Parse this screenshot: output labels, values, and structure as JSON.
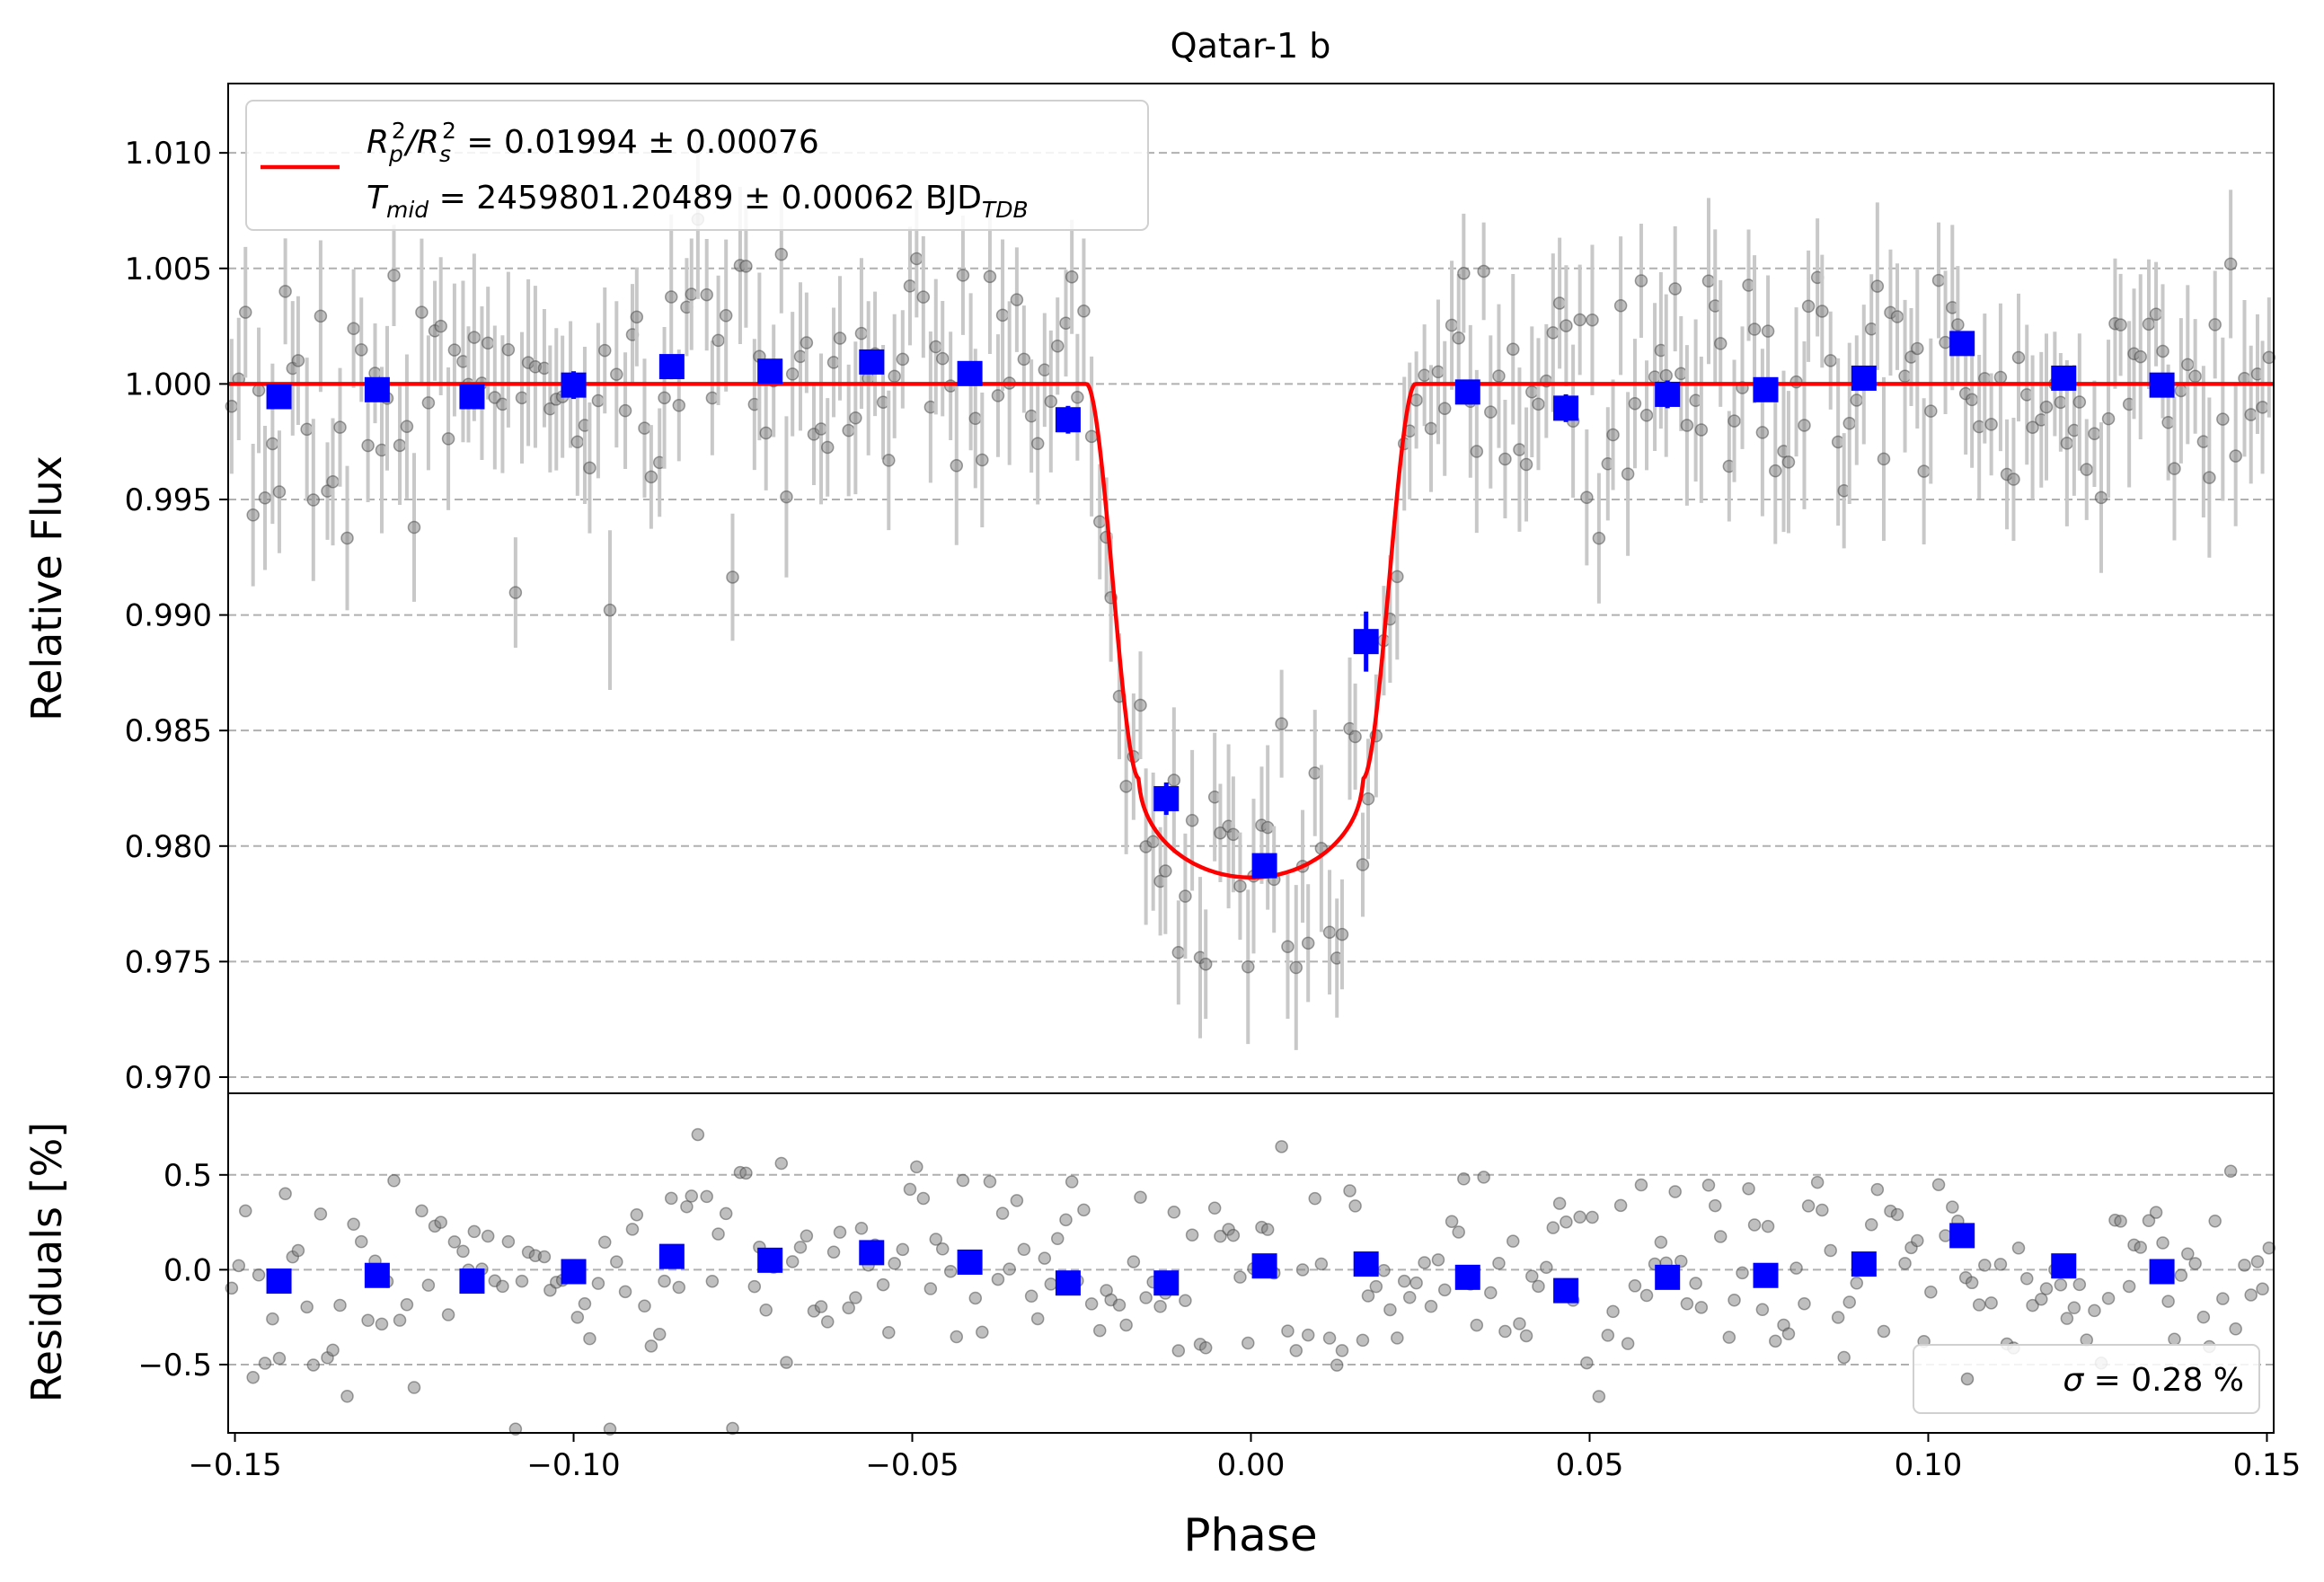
{
  "chart_data": [
    {
      "type": "scatter",
      "title": "Qatar-1 b",
      "xlabel": "",
      "ylabel": "Relative Flux",
      "xlim": [
        -0.151,
        0.151
      ],
      "ylim": [
        0.9693,
        1.013
      ],
      "yticks": [
        0.97,
        0.975,
        0.98,
        0.985,
        0.99,
        0.995,
        1.0,
        1.005,
        1.01
      ],
      "ytick_labels": [
        "0.970",
        "0.975",
        "0.980",
        "0.985",
        "0.990",
        "0.995",
        "1.000",
        "1.005",
        "1.010"
      ],
      "grid": "horizontal dashed",
      "legend": {
        "placement": "upper-left",
        "line1": {
          "pre": "R",
          "s1": "p",
          "s2": "2",
          "mid": "/R",
          "s3": "s",
          "s4": "2",
          "post": " = 0.01994 ± 0.00076"
        },
        "line2": {
          "pre": "T",
          "sub": "mid",
          "post": " = 2459801.20489 ± 0.00062 BJD",
          "sub2": "TDB"
        }
      },
      "model": {
        "color": "#ff0000",
        "baseline": 1.0,
        "depth": 0.02136,
        "t_contact_outer": 0.0243,
        "t_contact_inner": 0.0165
      },
      "binned": {
        "color": "#0000ff",
        "x": [
          -0.1435,
          -0.129,
          -0.115,
          -0.1,
          -0.0855,
          -0.071,
          -0.056,
          -0.0415,
          -0.027,
          -0.0125,
          0.002,
          0.017,
          0.032,
          0.0465,
          0.0615,
          0.076,
          0.0905,
          0.105,
          0.12,
          0.1345
        ],
        "y": [
          0.99945,
          0.99975,
          0.99945,
          0.99995,
          1.00075,
          1.00055,
          1.00095,
          1.00045,
          0.99845,
          0.98205,
          0.97915,
          0.98885,
          0.99965,
          0.99895,
          0.99955,
          0.99975,
          1.00025,
          1.00175,
          1.00025,
          0.99995
        ],
        "err": [
          0.0004,
          0.0004,
          0.0004,
          0.0006,
          0.0004,
          0.0004,
          0.0004,
          0.0004,
          0.0006,
          0.0007,
          0.0005,
          0.0013,
          0.0004,
          0.0006,
          0.0006,
          0.0004,
          0.0004,
          0.0005,
          0.0004,
          0.0004
        ]
      },
      "raw": {
        "color": "#808080",
        "n_points": 302,
        "x_start": -0.1505,
        "x_step": 0.001,
        "typical_err": 0.0028
      }
    },
    {
      "type": "scatter",
      "xlabel": "Phase",
      "ylabel": "Residuals [%]",
      "xlim": [
        -0.151,
        0.151
      ],
      "ylim": [
        -0.86,
        0.93
      ],
      "xticks": [
        -0.15,
        -0.1,
        -0.05,
        0.0,
        0.05,
        0.1,
        0.15
      ],
      "xtick_labels": [
        "−0.15",
        "−0.10",
        "−0.05",
        "0.00",
        "0.05",
        "0.10",
        "0.15"
      ],
      "yticks": [
        -0.5,
        0.0,
        0.5
      ],
      "ytick_labels": [
        "−0.5",
        "0.0",
        "0.5"
      ],
      "grid": "horizontal dashed",
      "legend": {
        "placement": "lower-right",
        "sym": "σ",
        "post": " = 0.28 %"
      },
      "binned": {
        "x": [
          -0.1435,
          -0.129,
          -0.115,
          -0.1,
          -0.0855,
          -0.071,
          -0.056,
          -0.0415,
          -0.027,
          -0.0125,
          0.002,
          0.017,
          0.032,
          0.0465,
          0.0615,
          0.076,
          0.0905,
          0.105,
          0.12,
          0.1345
        ],
        "y": [
          -0.06,
          -0.03,
          -0.06,
          -0.01,
          0.07,
          0.05,
          0.09,
          0.04,
          -0.07,
          -0.07,
          0.02,
          0.03,
          -0.04,
          -0.11,
          -0.04,
          -0.03,
          0.03,
          0.18,
          0.02,
          -0.01
        ]
      },
      "raw": {
        "sigma_pct": 0.28
      }
    }
  ]
}
